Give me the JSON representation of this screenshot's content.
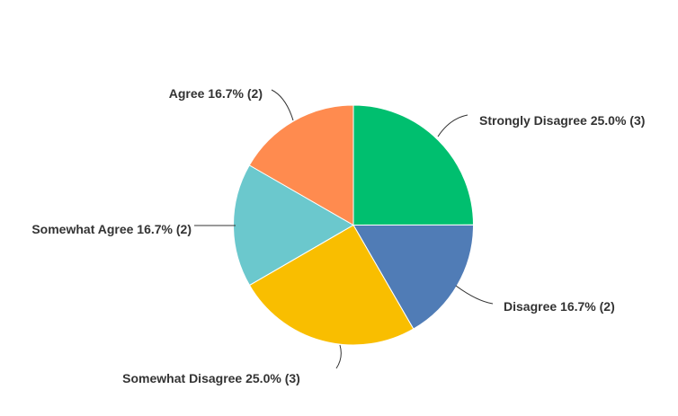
{
  "chart_data": {
    "type": "pie",
    "title": "",
    "start_angle": "12 o'clock, clockwise",
    "slices": [
      {
        "label": "Strongly Disagree",
        "percent": 25.0,
        "count": 3,
        "display": "Strongly Disagree 25.0% (3)",
        "color": "#00BF6F"
      },
      {
        "label": "Disagree",
        "percent": 16.7,
        "count": 2,
        "display": "Disagree 16.7% (2)",
        "color": "#507CB6"
      },
      {
        "label": "Somewhat Disagree",
        "percent": 25.0,
        "count": 3,
        "display": "Somewhat Disagree 25.0% (3)",
        "color": "#F9BE00"
      },
      {
        "label": "Somewhat Agree",
        "percent": 16.7,
        "count": 2,
        "display": "Somewhat Agree 16.7% (2)",
        "color": "#6BC8CD"
      },
      {
        "label": "Agree",
        "percent": 16.7,
        "count": 2,
        "display": "Agree 16.7% (2)",
        "color": "#FF8B4F"
      }
    ]
  }
}
